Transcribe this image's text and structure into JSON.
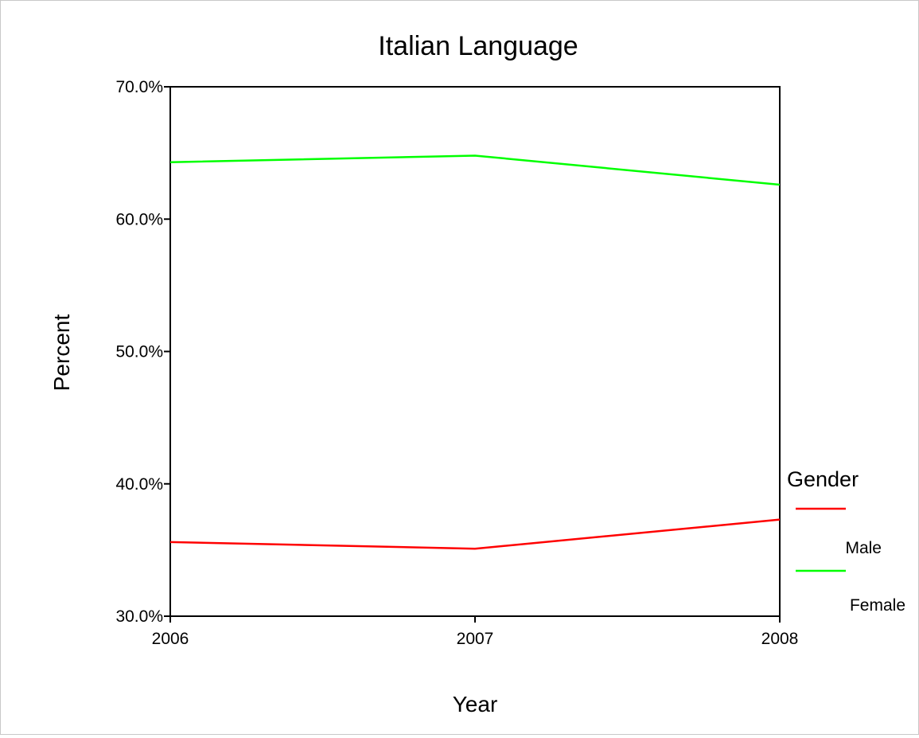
{
  "chart_data": {
    "type": "line",
    "title": "Italian Language",
    "xlabel": "Year",
    "ylabel": "Percent",
    "x": [
      2006,
      2007,
      2008
    ],
    "xticks": [
      "2006",
      "2007",
      "2008"
    ],
    "yticks": [
      "30.0%",
      "40.0%",
      "50.0%",
      "60.0%",
      "70.0%"
    ],
    "ytick_values": [
      30,
      40,
      50,
      60,
      70
    ],
    "ylim": [
      30,
      70
    ],
    "grid": false,
    "legend": {
      "title": "Gender",
      "placement": "right"
    },
    "series": [
      {
        "name": "Male",
        "color": "#ff0000",
        "values": [
          35.6,
          35.1,
          37.3
        ]
      },
      {
        "name": "Female",
        "color": "#00ff00",
        "values": [
          64.3,
          64.8,
          62.6
        ]
      }
    ]
  }
}
